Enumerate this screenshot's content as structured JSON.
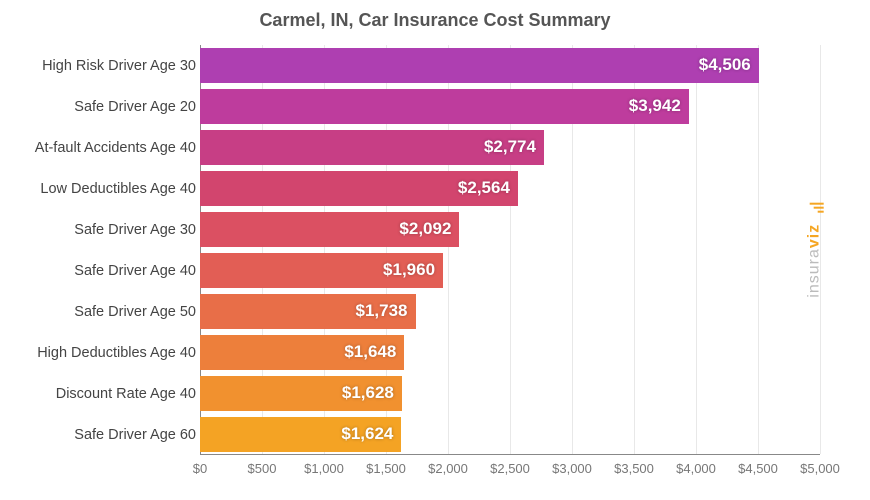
{
  "chart": {
    "type": "bar-horizontal",
    "title": "Carmel, IN, Car Insurance Cost Summary",
    "title_fontsize": 18,
    "title_color": "#555555",
    "background_color": "#ffffff",
    "grid_color": "#e8e8e8",
    "axis_color": "#888888",
    "label_fontsize": 14.5,
    "label_color": "#444444",
    "value_fontsize": 17,
    "value_color": "#ffffff",
    "xlim": [
      0,
      5000
    ],
    "xtick_step": 500,
    "xticks": [
      "$0",
      "$500",
      "$1,000",
      "$1,500",
      "$2,000",
      "$2,500",
      "$3,000",
      "$3,500",
      "$4,000",
      "$4,500",
      "$5,000"
    ],
    "bar_height_ratio": 0.85,
    "categories": [
      "High Risk Driver Age 30",
      "Safe Driver Age 20",
      "At-fault Accidents Age 40",
      "Low Deductibles Age 40",
      "Safe Driver Age 30",
      "Safe Driver Age 40",
      "Safe Driver Age 50",
      "High Deductibles Age 40",
      "Discount Rate Age 40",
      "Safe Driver Age 60"
    ],
    "values": [
      4506,
      3942,
      2774,
      2564,
      2092,
      1960,
      1738,
      1648,
      1628,
      1624
    ],
    "value_labels": [
      "$4,506",
      "$3,942",
      "$2,774",
      "$2,564",
      "$2,092",
      "$1,960",
      "$1,738",
      "$1,648",
      "$1,628",
      "$1,624"
    ],
    "bar_colors": [
      "#ae3fb1",
      "#be3c9d",
      "#c73e85",
      "#d2456e",
      "#db5062",
      "#e25e55",
      "#e86e48",
      "#ed7f3b",
      "#f1912f",
      "#f4a324"
    ]
  },
  "watermark": {
    "text_prefix": "insura",
    "text_accent": "viz",
    "color_muted": "#bbbbbb",
    "color_accent": "#f5a623"
  }
}
